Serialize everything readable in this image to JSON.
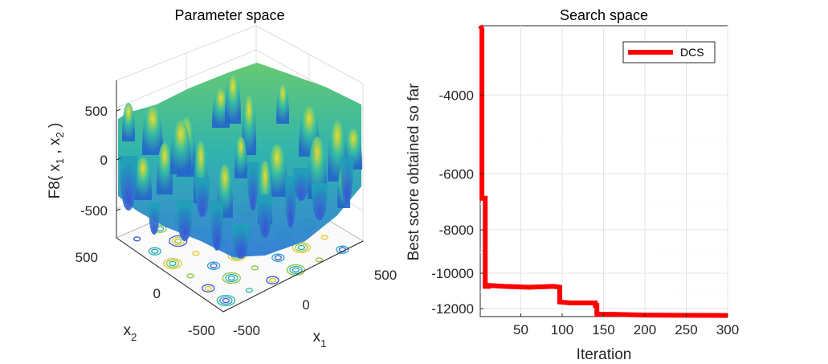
{
  "chart_data": [
    {
      "type": "surface3d",
      "title": "Parameter space",
      "zlabel": {
        "prefix": "F8( x",
        "sub1": "1",
        "mid": " , x",
        "sub2": "2",
        "suffix": " )"
      },
      "xlabel": {
        "base": "x",
        "sub": "1"
      },
      "ylabel": {
        "base": "x",
        "sub": "2"
      },
      "z_ticks": [
        "500",
        "0",
        "-500"
      ],
      "x_ticks": [
        "-500",
        "0",
        "500"
      ],
      "y_ticks": [
        "500",
        "0",
        "-500"
      ],
      "xlim": [
        -500,
        500
      ],
      "ylim": [
        -500,
        500
      ],
      "zlim": [
        -800,
        800
      ]
    },
    {
      "type": "line",
      "title": "Search space",
      "xlabel": "Iteration",
      "ylabel": "Best score obtained so far",
      "xlim": [
        1,
        300
      ],
      "ylim": [
        -12500,
        -2800
      ],
      "y_scale": "log (magnitude)",
      "x_ticks": [
        50,
        100,
        150,
        200,
        250,
        300
      ],
      "y_ticks": [
        -4000,
        -6000,
        -8000,
        -10000,
        -12000
      ],
      "legend": {
        "position": "top-right",
        "entries": [
          "DCS"
        ]
      },
      "series": [
        {
          "name": "DCS",
          "color": "#ff0000",
          "x": [
            1,
            3,
            3,
            7,
            7,
            11,
            11,
            30,
            60,
            90,
            97,
            97,
            110,
            140,
            140,
            142,
            142,
            160,
            200,
            240,
            300
          ],
          "y": [
            -2800,
            -2850,
            -6800,
            -6800,
            -10700,
            -10700,
            -10650,
            -10700,
            -10750,
            -10700,
            -10750,
            -11600,
            -11650,
            -11650,
            -11800,
            -11800,
            -12350,
            -12350,
            -12400,
            -12420,
            -12430
          ]
        }
      ]
    }
  ]
}
